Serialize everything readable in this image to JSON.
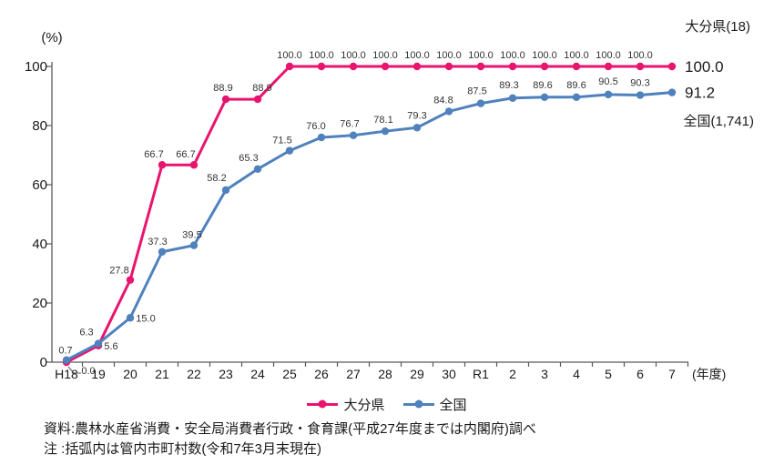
{
  "chart_data": {
    "type": "line",
    "title": "",
    "y_unit": "(%)",
    "x_unit": "(年度)",
    "ylim": [
      0,
      100
    ],
    "yticks": [
      0,
      20,
      40,
      60,
      80,
      100
    ],
    "grid": false,
    "legend_position": "bottom",
    "categories": [
      "H18",
      "19",
      "20",
      "21",
      "22",
      "23",
      "24",
      "25",
      "26",
      "27",
      "28",
      "29",
      "30",
      "R1",
      "2",
      "3",
      "4",
      "5",
      "6",
      "7"
    ],
    "series": [
      {
        "id": "oita",
        "name": "大分県",
        "annotation": "大分県(18)",
        "color": "#e8146e",
        "values": [
          0.0,
          5.6,
          27.8,
          66.7,
          66.7,
          88.9,
          88.9,
          100.0,
          100.0,
          100.0,
          100.0,
          100.0,
          100.0,
          100.0,
          100.0,
          100.0,
          100.0,
          100.0,
          100.0,
          100.0
        ],
        "end_label": "100.0",
        "label_dx": [
          24,
          14,
          -12,
          -9,
          -9,
          -3,
          5,
          0,
          0,
          0,
          0,
          0,
          0,
          0,
          0,
          0,
          0,
          0,
          0,
          0
        ],
        "label_dy": [
          13,
          4,
          -7,
          -8,
          -8,
          -9,
          -9,
          -9,
          -9,
          -9,
          -9,
          -9,
          -9,
          -9,
          -9,
          -9,
          -9,
          -9,
          -9,
          0
        ],
        "leader_at_first": true
      },
      {
        "id": "zenkoku",
        "name": "全国",
        "annotation": "全国(1,741)",
        "color": "#4f81bd",
        "values": [
          0.7,
          6.3,
          15.0,
          37.3,
          39.5,
          58.2,
          65.3,
          71.5,
          76.0,
          76.7,
          78.1,
          79.3,
          84.8,
          87.5,
          89.3,
          89.6,
          89.6,
          90.5,
          90.3,
          91.2
        ],
        "end_label": "91.2",
        "label_dx": [
          -1,
          -13,
          17,
          -5,
          -2,
          -10,
          -10,
          -8,
          -6,
          -4,
          -2,
          0,
          -6,
          -4,
          -4,
          -2,
          0,
          0,
          0,
          0
        ],
        "label_dy": [
          -7,
          -9,
          4,
          -8,
          -8,
          -10,
          -9,
          -8,
          -9,
          -9,
          -9,
          -10,
          -9,
          -10,
          -11,
          -10,
          -10,
          -11,
          -10,
          0
        ],
        "leader_at_first": false
      }
    ]
  },
  "footer": {
    "source": "資料:農林水産省消費・安全局消費者行政・食育課(平成27年度までは内閣府)調べ",
    "note": "注 :括弧内は管内市町村数(令和7年3月末現在)"
  }
}
